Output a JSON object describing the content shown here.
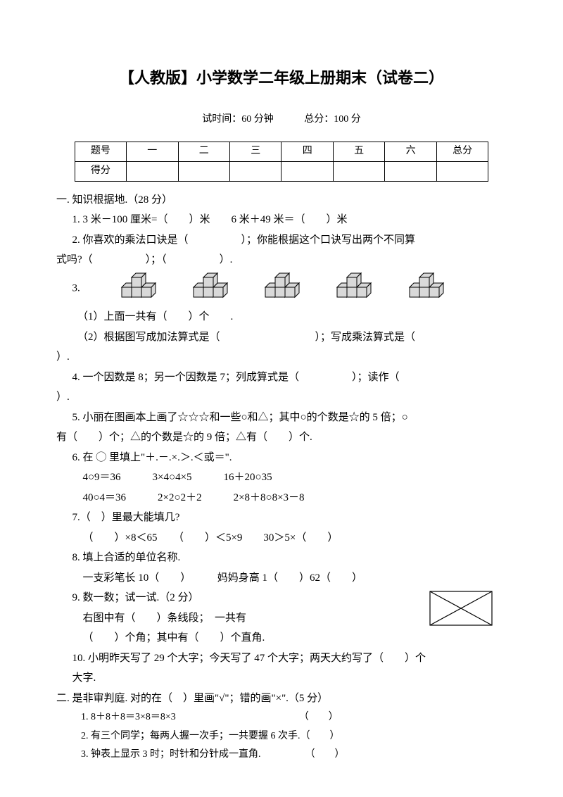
{
  "title": "【人教版】小学数学二年级上册期末（试卷二）",
  "meta": {
    "time_label": "试时间：60 分钟",
    "total_label": "总分：100 分"
  },
  "score_table": {
    "headers": [
      "题号",
      "一",
      "二",
      "三",
      "四",
      "五",
      "六",
      "总分"
    ],
    "row_label": "得分"
  },
  "section1": {
    "heading": "一. 知识根据地.（28 分）",
    "q1": "1. 3 米－100 厘米=（　　）米　　6 米＋49 米＝（　　）米",
    "q2a": "2. 你喜欢的乘法口诀是（　　　　　）；你能根据这个口诀写出两个不同算",
    "q2b": "式吗?（　　　　　）；（　　　　　）.",
    "q3_label": "3.",
    "q3_1": "（1）上面一共有（　　）个　　.",
    "q3_2a": "（2）根据图写成加法算式是（　　　　　　　　　）；写成乘法算式是（",
    "q3_2b": "）.",
    "q4a": "4. 一个因数是 8；另一个因数是 7；列成算式是（　　　　　）；读作（",
    "q4b": "）.",
    "q5a": "5. 小丽在图画本上画了☆☆☆和一些○和△；其中○的个数是☆的 5 倍；○",
    "q5b": "有（　　）个；△的个数是☆的 9 倍；△有（　　）个.",
    "q6a": "6. 在 ◯ 里填上\"＋.－.×.＞.＜或＝\".",
    "q6b": "4○9＝36　　　3×4○4×5　　　16＋20○35",
    "q6c": "40○4＝36　　　2×2○2＋2　　　2×8＋8○8×3－8",
    "q7a": "7.（　）里最大能填几?",
    "q7b": "（　　）×8＜65　　（　　）＜5×9　　30＞5×（　　）",
    "q8a": "8. 填上合适的单位名称.",
    "q8b": "一支彩笔长 10（　　）　　　妈妈身高 1（　　）62（　　）",
    "q9a": "9. 数一数；试一试.（2 分）",
    "q9b": "右图中有（　　）条线段；　一共有",
    "q9c": "（　　）个角；其中有（　　）个直角.",
    "q10a": "10. 小明昨天写了 29 个大字；今天写了 47 个大字；两天大约写了（　　）个",
    "q10b": "大字."
  },
  "section2": {
    "heading": "二. 是非审判庭. 对的在（　）里画\"√\"；错的画\"×\".（5 分）",
    "j1": "1. 8＋8＋8＝3×8＝8×3　　　　　　　　　　　　　（　　）",
    "j2": "2. 有三个同学；每两人握一次手；一共要握 6 次手.（　　）",
    "j3": "3. 钟表上显示 3 时；时针和分针成一直角.　　　　　（　　）"
  },
  "svg": {
    "cube_fill": "#d9d9d9",
    "cube_stroke": "#000000",
    "rect_stroke": "#000000"
  }
}
